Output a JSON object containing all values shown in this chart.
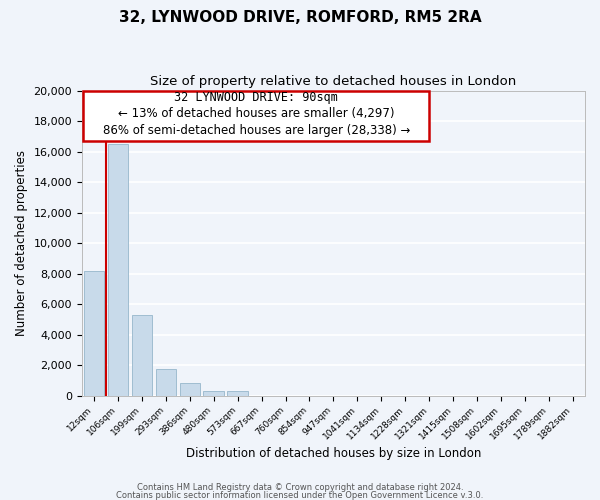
{
  "title": "32, LYNWOOD DRIVE, ROMFORD, RM5 2RA",
  "subtitle": "Size of property relative to detached houses in London",
  "xlabel": "Distribution of detached houses by size in London",
  "ylabel": "Number of detached properties",
  "bar_labels": [
    "12sqm",
    "106sqm",
    "199sqm",
    "293sqm",
    "386sqm",
    "480sqm",
    "573sqm",
    "667sqm",
    "760sqm",
    "854sqm",
    "947sqm",
    "1041sqm",
    "1134sqm",
    "1228sqm",
    "1321sqm",
    "1415sqm",
    "1508sqm",
    "1602sqm",
    "1695sqm",
    "1789sqm",
    "1882sqm"
  ],
  "bar_values": [
    8200,
    16500,
    5300,
    1750,
    800,
    275,
    275,
    0,
    0,
    0,
    0,
    0,
    0,
    0,
    0,
    0,
    0,
    0,
    0,
    0,
    0
  ],
  "bar_color": "#c8daea",
  "bar_edge_color": "#a0bdd0",
  "annotation_title": "32 LYNWOOD DRIVE: 90sqm",
  "annotation_line1": "← 13% of detached houses are smaller (4,297)",
  "annotation_line2": "86% of semi-detached houses are larger (28,338) →",
  "annotation_box_color": "#ffffff",
  "annotation_box_edge": "#cc0000",
  "vline_color": "#cc0000",
  "ylim": [
    0,
    20000
  ],
  "yticks": [
    0,
    2000,
    4000,
    6000,
    8000,
    10000,
    12000,
    14000,
    16000,
    18000,
    20000
  ],
  "footer1": "Contains HM Land Registry data © Crown copyright and database right 2024.",
  "footer2": "Contains public sector information licensed under the Open Government Licence v.3.0.",
  "bg_color": "#f0f4fa",
  "grid_color": "#ffffff",
  "title_fontsize": 11,
  "subtitle_fontsize": 9.5
}
